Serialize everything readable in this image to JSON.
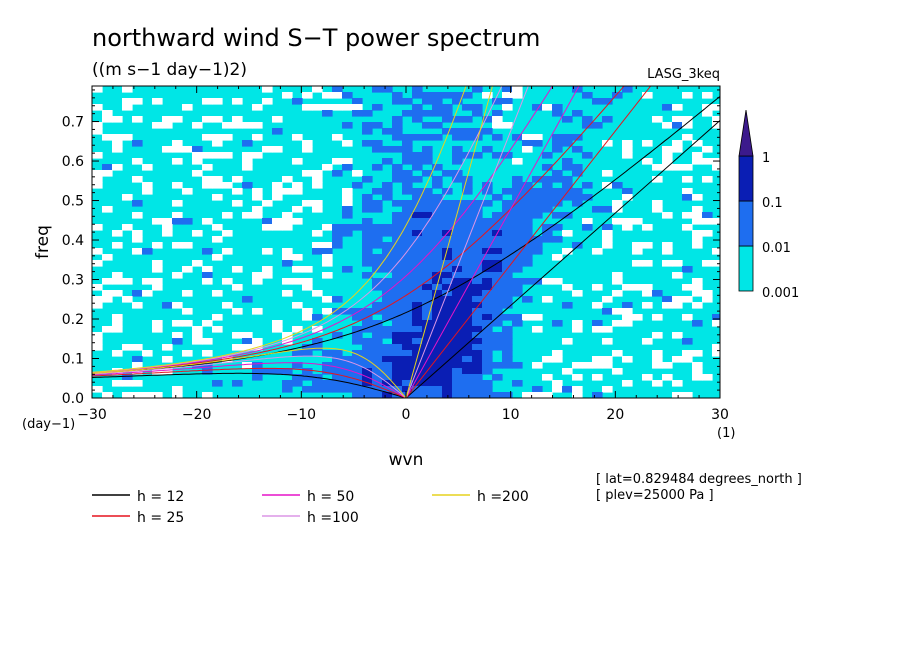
{
  "chart_data": {
    "type": "heatmap",
    "title": "northward wind S−T power spectrum",
    "subtitle": "((m s−1 day−1)2)",
    "dataset_label": "LASG_3keq",
    "xlabel": "wvn",
    "ylabel": "freq",
    "x_unit": "(1)",
    "y_unit": "(day−1)",
    "xlim": [
      -30,
      30
    ],
    "ylim": [
      0,
      0.79
    ],
    "x_ticks": [
      -30,
      -20,
      -10,
      0,
      10,
      20,
      30
    ],
    "x_tick_labels": [
      "−30",
      "−20",
      "−10",
      "0",
      "10",
      "20",
      "30"
    ],
    "y_ticks": [
      0.0,
      0.1,
      0.2,
      0.3,
      0.4,
      0.5,
      0.6,
      0.7
    ],
    "y_tick_labels": [
      "0.0",
      "0.1",
      "0.2",
      "0.3",
      "0.4",
      "0.5",
      "0.6",
      "0.7"
    ],
    "colorbar": {
      "levels": [
        0.001,
        0.01,
        0.1,
        1
      ],
      "labels": [
        "0.001",
        "0.01",
        "0.1",
        "1"
      ],
      "colors": [
        "#ffffff",
        "#00e6e6",
        "#1e6ef0",
        "#0a1eb4",
        "#3c1a8c"
      ]
    },
    "dispersion_curves": [
      {
        "label": "h = 12",
        "h": 12,
        "color": "#000000"
      },
      {
        "label": "h = 25",
        "h": 25,
        "color": "#e6141e"
      },
      {
        "label": "h = 50",
        "h": 50,
        "color": "#e614c8"
      },
      {
        "label": "h =100",
        "h": 100,
        "color": "#dc96e6"
      },
      {
        "label": "h =200",
        "h": 200,
        "color": "#e6d21e"
      }
    ],
    "info": [
      "[ lat=0.829484 degrees_north ]",
      "[ plev=25000 Pa ]"
    ]
  }
}
